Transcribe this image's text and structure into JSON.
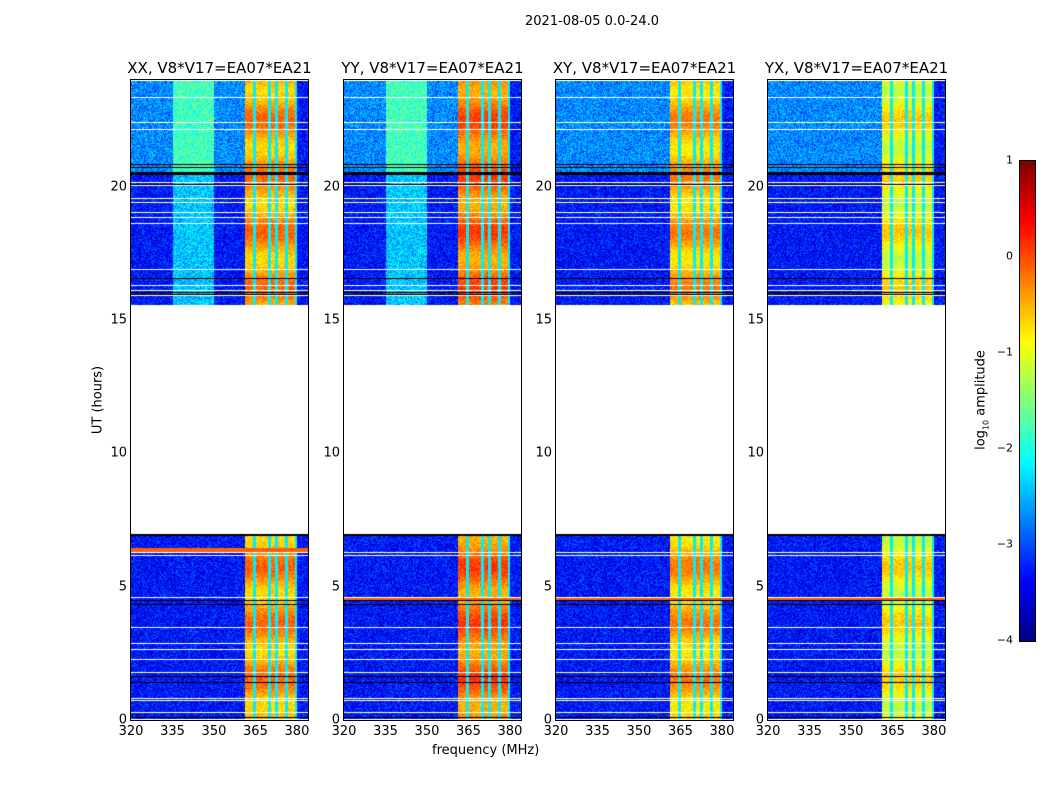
{
  "chart_data": {
    "type": "heatmap",
    "title": "2021-08-05 0.0-24.0",
    "xlabel": "frequency (MHz)",
    "ylabel": "UT (hours)",
    "xlim": [
      320,
      384
    ],
    "ylim": [
      0,
      24
    ],
    "xticks": [
      "320",
      "335",
      "350",
      "365",
      "380"
    ],
    "yticks": [
      "0",
      "5",
      "10",
      "15",
      "20"
    ],
    "xtick_values": [
      320,
      335,
      350,
      365,
      380
    ],
    "ytick_values": [
      0,
      5,
      10,
      15,
      20
    ],
    "panels": [
      {
        "title": "XX, V8*V17=EA07*EA21",
        "bright_band_level": -0.4,
        "upper_cyan": true
      },
      {
        "title": "YY, V8*V17=EA07*EA21",
        "bright_band_level": -0.2,
        "upper_cyan": true
      },
      {
        "title": "XY, V8*V17=EA07*EA21",
        "bright_band_level": -0.5,
        "upper_cyan": false
      },
      {
        "title": "YX, V8*V17=EA07*EA21",
        "bright_band_level": -0.9,
        "upper_cyan": false
      }
    ],
    "data_segments_hours": [
      [
        0,
        7.0
      ],
      [
        15.6,
        24
      ]
    ],
    "rfi_band_mhz": [
      361,
      380
    ],
    "colorbar": {
      "label": "log10 amplitude",
      "label_main": "log",
      "label_sub": "10",
      "label_rest": " amplitude",
      "range": [
        -4,
        1
      ],
      "ticks": [
        "1",
        "0",
        "−1",
        "−2",
        "−3",
        "−4"
      ],
      "tick_values": [
        1,
        0,
        -1,
        -2,
        -3,
        -4
      ],
      "colormap": "jet"
    }
  }
}
